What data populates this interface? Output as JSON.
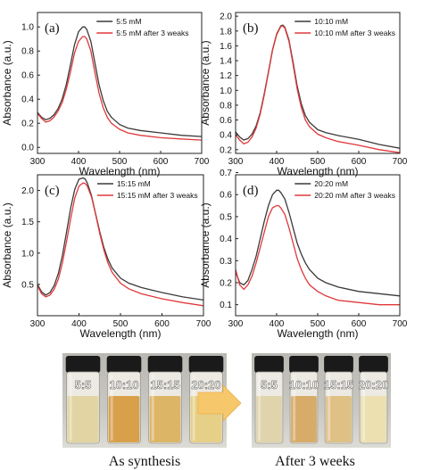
{
  "colors": {
    "series_initial": "#3a3a3a",
    "series_after": "#e0383a",
    "arrow": "#f7c76c",
    "vial_cap": "#1a1a1a",
    "photo_background": "#c9c8c2"
  },
  "chart_data": [
    {
      "type": "line",
      "panel_label": "(a)",
      "xlabel": "Wavelength (nm)",
      "ylabel": "Absorbance (a.u.)",
      "xlim": [
        300,
        700
      ],
      "ylim": [
        -0.05,
        1.12
      ],
      "x_ticks": [
        "300",
        "400",
        "500",
        "600",
        "700"
      ],
      "y_ticks": [
        "0.0",
        "0.2",
        "0.4",
        "0.6",
        "0.8",
        "1.0"
      ],
      "y_tick_values": [
        0.0,
        0.2,
        0.4,
        0.6,
        0.8,
        1.0
      ],
      "legend_position": "top-right",
      "series": [
        {
          "name": "5:5 mM",
          "color_key": "series_initial",
          "x": [
            300,
            310,
            320,
            330,
            340,
            350,
            360,
            370,
            380,
            390,
            400,
            410,
            415,
            420,
            430,
            440,
            450,
            460,
            470,
            480,
            500,
            520,
            550,
            600,
            650,
            700
          ],
          "y": [
            0.29,
            0.25,
            0.23,
            0.24,
            0.27,
            0.32,
            0.4,
            0.52,
            0.68,
            0.85,
            0.96,
            1.0,
            1.0,
            0.98,
            0.88,
            0.7,
            0.52,
            0.39,
            0.3,
            0.25,
            0.19,
            0.16,
            0.14,
            0.12,
            0.1,
            0.09
          ]
        },
        {
          "name": "5:5 mM after 3 weaks",
          "color_key": "series_after",
          "x": [
            300,
            310,
            320,
            330,
            340,
            350,
            360,
            370,
            380,
            390,
            400,
            410,
            415,
            420,
            430,
            440,
            450,
            460,
            470,
            480,
            500,
            520,
            550,
            600,
            650,
            700
          ],
          "y": [
            0.28,
            0.24,
            0.21,
            0.22,
            0.25,
            0.3,
            0.37,
            0.48,
            0.62,
            0.78,
            0.88,
            0.92,
            0.92,
            0.9,
            0.8,
            0.62,
            0.45,
            0.33,
            0.25,
            0.2,
            0.15,
            0.12,
            0.1,
            0.08,
            0.07,
            0.06
          ]
        }
      ]
    },
    {
      "type": "line",
      "panel_label": "(b)",
      "xlabel": "Wavelength (nm)",
      "ylabel": "Absorbance (a.u.)",
      "xlim": [
        300,
        700
      ],
      "ylim": [
        0.15,
        2.05
      ],
      "x_ticks": [
        "300",
        "400",
        "500",
        "600",
        "700"
      ],
      "y_ticks": [
        "0.2",
        "0.4",
        "0.6",
        "0.8",
        "1.0",
        "1.2",
        "1.4",
        "1.6",
        "1.8",
        "2.0"
      ],
      "y_tick_values": [
        0.2,
        0.4,
        0.6,
        0.8,
        1.0,
        1.2,
        1.4,
        1.6,
        1.8,
        2.0
      ],
      "legend_position": "top-right",
      "series": [
        {
          "name": "10:10 mM",
          "color_key": "series_initial",
          "x": [
            300,
            310,
            320,
            330,
            340,
            350,
            360,
            370,
            380,
            390,
            400,
            410,
            415,
            420,
            430,
            440,
            450,
            460,
            470,
            480,
            500,
            520,
            550,
            600,
            650,
            700
          ],
          "y": [
            0.44,
            0.37,
            0.33,
            0.35,
            0.41,
            0.52,
            0.7,
            0.96,
            1.25,
            1.55,
            1.76,
            1.87,
            1.88,
            1.85,
            1.68,
            1.38,
            1.06,
            0.82,
            0.66,
            0.57,
            0.47,
            0.43,
            0.39,
            0.34,
            0.27,
            0.22
          ]
        },
        {
          "name": "10:10 mM after 3 weaks",
          "color_key": "series_after",
          "x": [
            300,
            310,
            320,
            330,
            340,
            350,
            360,
            370,
            380,
            390,
            400,
            410,
            415,
            420,
            430,
            440,
            450,
            460,
            470,
            480,
            500,
            520,
            550,
            600,
            650,
            700
          ],
          "y": [
            0.4,
            0.33,
            0.28,
            0.3,
            0.37,
            0.49,
            0.68,
            0.94,
            1.24,
            1.54,
            1.75,
            1.86,
            1.87,
            1.84,
            1.66,
            1.35,
            1.02,
            0.77,
            0.6,
            0.51,
            0.41,
            0.36,
            0.31,
            0.26,
            0.2,
            0.16
          ]
        }
      ]
    },
    {
      "type": "line",
      "panel_label": "(c)",
      "xlabel": "Wavelength (nm)",
      "ylabel": "Absorbance (a.u.)",
      "xlim": [
        300,
        700
      ],
      "ylim": [
        0.0,
        2.25
      ],
      "x_ticks": [
        "300",
        "400",
        "500",
        "600",
        "700"
      ],
      "y_ticks": [
        "0.5",
        "1.0",
        "1.5",
        "2.0"
      ],
      "y_tick_values": [
        0.5,
        1.0,
        1.5,
        2.0
      ],
      "legend_position": "top-right",
      "series": [
        {
          "name": "15:15 mM",
          "color_key": "series_initial",
          "x": [
            300,
            310,
            320,
            330,
            340,
            350,
            360,
            370,
            380,
            390,
            400,
            410,
            415,
            420,
            430,
            440,
            450,
            460,
            470,
            480,
            500,
            520,
            550,
            600,
            650,
            700
          ],
          "y": [
            0.5,
            0.38,
            0.33,
            0.37,
            0.48,
            0.67,
            0.96,
            1.33,
            1.72,
            2.02,
            2.18,
            2.2,
            2.18,
            2.12,
            1.92,
            1.63,
            1.34,
            1.09,
            0.9,
            0.76,
            0.6,
            0.52,
            0.45,
            0.37,
            0.3,
            0.25
          ]
        },
        {
          "name": "15:15 mM after 3 weaks",
          "color_key": "series_after",
          "x": [
            300,
            310,
            320,
            330,
            340,
            350,
            360,
            370,
            380,
            390,
            400,
            410,
            415,
            420,
            430,
            440,
            450,
            460,
            470,
            480,
            500,
            520,
            550,
            600,
            650,
            700
          ],
          "y": [
            0.48,
            0.35,
            0.3,
            0.33,
            0.42,
            0.58,
            0.84,
            1.18,
            1.55,
            1.88,
            2.07,
            2.12,
            2.11,
            2.07,
            1.9,
            1.62,
            1.31,
            1.05,
            0.84,
            0.69,
            0.52,
            0.43,
            0.35,
            0.27,
            0.21,
            0.16
          ]
        }
      ]
    },
    {
      "type": "line",
      "panel_label": "(d)",
      "xlabel": "Wavelength (nm)",
      "ylabel": "Absorbance (a.u.)",
      "xlim": [
        300,
        700
      ],
      "ylim": [
        0.05,
        0.69
      ],
      "x_ticks": [
        "300",
        "400",
        "500",
        "600",
        "700"
      ],
      "y_ticks": [
        "0.1",
        "0.2",
        "0.3",
        "0.4",
        "0.5",
        "0.6",
        "0.7"
      ],
      "y_tick_values": [
        0.1,
        0.2,
        0.3,
        0.4,
        0.5,
        0.6,
        0.7
      ],
      "legend_position": "top-right",
      "series": [
        {
          "name": "20:20 mM",
          "color_key": "series_initial",
          "x": [
            300,
            310,
            320,
            330,
            340,
            350,
            360,
            370,
            380,
            390,
            400,
            405,
            410,
            420,
            430,
            440,
            450,
            460,
            470,
            480,
            500,
            520,
            550,
            600,
            650,
            700
          ],
          "y": [
            0.25,
            0.2,
            0.19,
            0.21,
            0.26,
            0.32,
            0.4,
            0.48,
            0.55,
            0.6,
            0.62,
            0.62,
            0.61,
            0.58,
            0.52,
            0.45,
            0.38,
            0.33,
            0.29,
            0.26,
            0.22,
            0.2,
            0.18,
            0.16,
            0.15,
            0.14
          ]
        },
        {
          "name": "20:20 mM after 3 weaks",
          "color_key": "series_after",
          "x": [
            300,
            310,
            320,
            330,
            340,
            350,
            360,
            370,
            380,
            390,
            400,
            405,
            410,
            420,
            430,
            440,
            450,
            460,
            470,
            480,
            500,
            520,
            550,
            600,
            650,
            700
          ],
          "y": [
            0.26,
            0.19,
            0.17,
            0.19,
            0.23,
            0.29,
            0.36,
            0.43,
            0.5,
            0.54,
            0.55,
            0.55,
            0.54,
            0.51,
            0.45,
            0.38,
            0.31,
            0.26,
            0.22,
            0.19,
            0.16,
            0.14,
            0.12,
            0.11,
            0.1,
            0.1
          ]
        }
      ]
    }
  ],
  "photo": {
    "left": {
      "caption": "As synthesis",
      "vials": [
        {
          "label": "5:5",
          "liquid": "#e2d5a3"
        },
        {
          "label": "10:10",
          "liquid": "#d8a04a"
        },
        {
          "label": "15:15",
          "liquid": "#dcb567"
        },
        {
          "label": "20:20",
          "liquid": "#e6cf86"
        }
      ]
    },
    "right": {
      "caption": "After 3 weeks",
      "vials": [
        {
          "label": "5:5",
          "liquid": "#e0d4ad"
        },
        {
          "label": "10:10",
          "liquid": "#d7ab68"
        },
        {
          "label": "15:15",
          "liquid": "#dfc186"
        },
        {
          "label": "20:20",
          "liquid": "#ece0b0"
        }
      ]
    }
  }
}
